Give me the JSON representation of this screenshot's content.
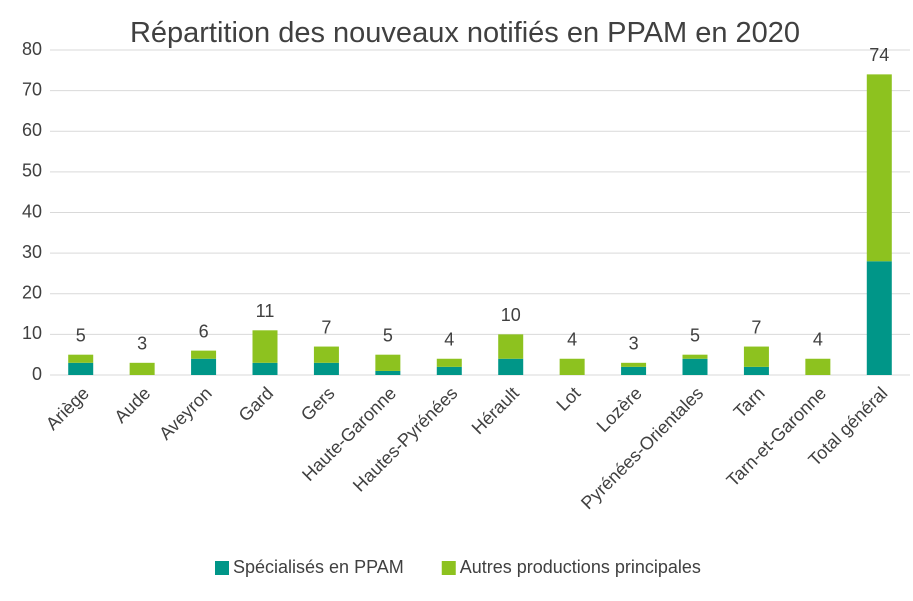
{
  "chart_data": {
    "type": "stacked_bar",
    "title": "Répartition des nouveaux notifiés en PPAM en 2020",
    "categories": [
      "Ariège",
      "Aude",
      "Aveyron",
      "Gard",
      "Gers",
      "Haute-Garonne",
      "Hautes-Pyrénées",
      "Hérault",
      "Lot",
      "Lozère",
      "Pyrénées-Orientales",
      "Tarn",
      "Tarn-et-Garonne",
      "Total général"
    ],
    "series": [
      {
        "name": "Spécialisés en PPAM",
        "color": "#009688",
        "values": [
          3,
          0,
          4,
          3,
          3,
          1,
          2,
          4,
          0,
          2,
          4,
          2,
          0,
          28
        ]
      },
      {
        "name": "Autres productions principales",
        "color": "#8dc21f",
        "values": [
          2,
          3,
          2,
          8,
          4,
          4,
          2,
          6,
          4,
          1,
          1,
          5,
          4,
          46
        ]
      }
    ],
    "totals": [
      5,
      3,
      6,
      11,
      7,
      5,
      4,
      10,
      4,
      3,
      5,
      7,
      4,
      74
    ],
    "ylim": [
      0,
      80
    ],
    "yticks": [
      0,
      10,
      20,
      30,
      40,
      50,
      60,
      70,
      80
    ],
    "grid": true,
    "legend": "bottom"
  }
}
